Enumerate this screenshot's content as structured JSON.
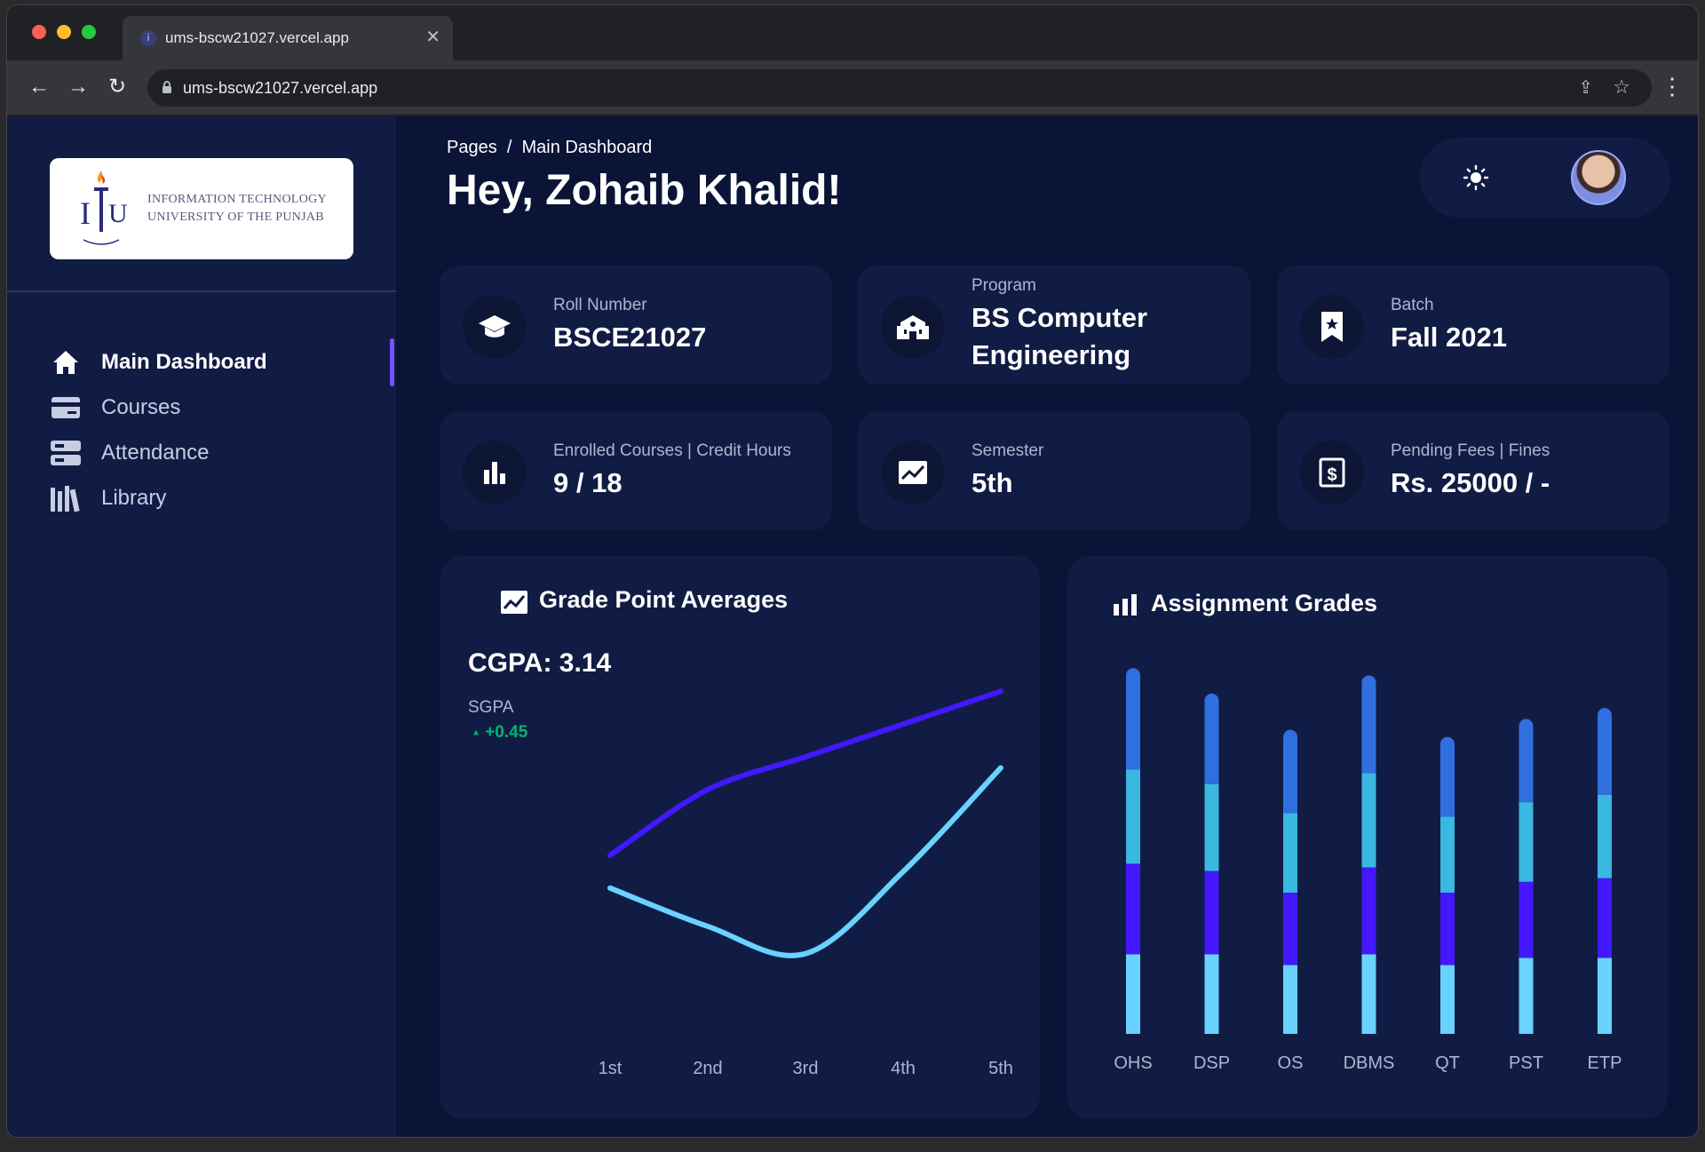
{
  "browser": {
    "tab_title": "ums-bscw21027.vercel.app",
    "url": "ums-bscw21027.vercel.app"
  },
  "sidebar": {
    "logo_line1": "INFORMATION TECHNOLOGY",
    "logo_line2": "UNIVERSITY OF THE PUNJAB",
    "items": [
      {
        "label": "Main Dashboard",
        "icon": "home-icon",
        "active": true
      },
      {
        "label": "Courses",
        "icon": "credit-card-icon",
        "active": false
      },
      {
        "label": "Attendance",
        "icon": "storage-icon",
        "active": false
      },
      {
        "label": "Library",
        "icon": "library-icon",
        "active": false
      }
    ]
  },
  "header": {
    "breadcrumb": "Pages  /  Main Dashboard",
    "greeting": "Hey, Zohaib Khalid!"
  },
  "stats": [
    {
      "label": "Roll Number",
      "value": "BSCE21027",
      "icon": "graduation-cap-icon"
    },
    {
      "label": "Program",
      "value": "BS Computer Engineering",
      "icon": "school-icon"
    },
    {
      "label": "Batch",
      "value": "Fall 2021",
      "icon": "bookmark-icon"
    },
    {
      "label": "Enrolled Courses | Credit Hours",
      "value": "9 / 18",
      "icon": "bar-chart-icon"
    },
    {
      "label": "Semester",
      "value": "5th",
      "icon": "trending-icon"
    },
    {
      "label": "Pending Fees | Fines",
      "value": "Rs. 25000 / -",
      "icon": "dollar-icon"
    }
  ],
  "gpa_card": {
    "title": "Grade Point Averages",
    "cgpa": "CGPA: 3.14",
    "sgpa_label": "SGPA",
    "sgpa_delta": "+0.45"
  },
  "assign_card": {
    "title": "Assignment Grades"
  },
  "colors": {
    "accent": "#7551ff",
    "line_dark": "#4318ff",
    "line_light": "#6ad2ff",
    "positive": "#01b574"
  },
  "chart_data": [
    {
      "type": "line",
      "x": [
        "1st",
        "2nd",
        "3rd",
        "4th",
        "5th"
      ],
      "series": [
        {
          "values": [
            2.4,
            3.0,
            3.3,
            3.6,
            3.9
          ]
        },
        {
          "values": [
            2.1,
            1.75,
            1.5,
            2.25,
            3.2
          ]
        }
      ],
      "ylim": [
        1.4,
        4.0
      ]
    },
    {
      "type": "bar",
      "stacked": true,
      "categories": [
        "OHS",
        "DSP",
        "OS",
        "DBMS",
        "QT",
        "PST",
        "ETP"
      ],
      "series": [
        {
          "values": [
            22,
            22,
            19,
            22,
            19,
            21,
            21
          ]
        },
        {
          "values": [
            25,
            23,
            20,
            24,
            20,
            21,
            22
          ]
        },
        {
          "values": [
            26,
            24,
            22,
            26,
            21,
            22,
            23
          ]
        },
        {
          "values": [
            28,
            25,
            23,
            27,
            22,
            23,
            24
          ]
        }
      ],
      "series_colors": [
        "#6ad2ff",
        "#4318ff",
        "#39b8e0",
        "#2f6fe0"
      ],
      "ylim": [
        0,
        105
      ]
    }
  ]
}
